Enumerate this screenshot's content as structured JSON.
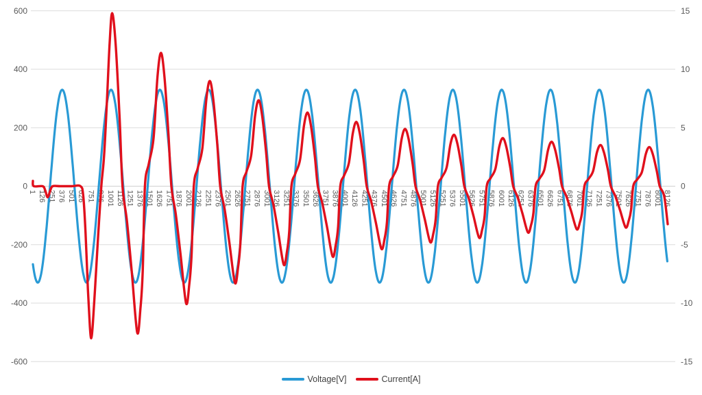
{
  "window": {
    "background": "#ffffff"
  },
  "colors": {
    "gridline": "#dbdbdb",
    "zero_line": "#cfcfcf",
    "axis_text": "#595959",
    "legend_text": "#3f3f3f",
    "voltage": "#299ad5",
    "current": "#e0101c"
  },
  "legend": {
    "items": [
      {
        "label": "Voltage[V]",
        "series": "voltage"
      },
      {
        "label": "Current[A]",
        "series": "current"
      }
    ]
  },
  "chart_data": {
    "type": "line",
    "title": "",
    "grid": "horizontal-only",
    "legend_position": "bottom-center",
    "x_axis": {
      "min": 1,
      "max": 8126,
      "tick_step": 125,
      "labels_rotation_deg": 90,
      "ticks": [
        1,
        126,
        251,
        376,
        501,
        626,
        751,
        876,
        1001,
        1126,
        1251,
        1376,
        1501,
        1626,
        1751,
        1876,
        2001,
        2126,
        2251,
        2376,
        2501,
        2626,
        2751,
        2876,
        3001,
        3126,
        3251,
        3376,
        3501,
        3626,
        3751,
        3876,
        4001,
        4126,
        4251,
        4376,
        4501,
        4626,
        4751,
        4876,
        5001,
        5126,
        5251,
        5376,
        5501,
        5626,
        5751,
        5876,
        6001,
        6126,
        6251,
        6376,
        6501,
        6626,
        6751,
        6876,
        7001,
        7126,
        7251,
        7376,
        7501,
        7626,
        7751,
        7876,
        8001,
        8126
      ]
    },
    "y_axis_left": {
      "min": -600,
      "max": 600,
      "tick_step": 200,
      "ticks": [
        600,
        400,
        200,
        0,
        -200,
        -400,
        -600
      ]
    },
    "y_axis_right": {
      "min": -15,
      "max": 15,
      "tick_step": 5,
      "ticks": [
        15,
        10,
        5,
        0,
        -5,
        -10,
        -15
      ]
    },
    "series": [
      {
        "name": "Voltage[V]",
        "axis": "left",
        "color_key": "voltage",
        "waveform": {
          "kind": "cosine",
          "amplitude": 330,
          "period_samples": 625,
          "peak_at_x": 376,
          "x_start": 1,
          "x_end": 8126,
          "peak_xs": [
            376,
            1001,
            1626,
            2251,
            2876,
            3501,
            4126,
            4751,
            5376,
            6001,
            6626,
            7251,
            7876
          ]
        }
      },
      {
        "name": "Current[A]",
        "axis": "right",
        "color_key": "current",
        "waveform": {
          "kind": "decaying-distorted-sine-keypoints",
          "initial_points": [
            [
              1,
              0.45
            ],
            [
              12,
              0
            ],
            [
              126,
              0
            ],
            [
              158,
              -0.35
            ],
            [
              190,
              -0.95
            ],
            [
              224,
              -0.35
            ],
            [
              255,
              0
            ],
            [
              350,
              0
            ],
            [
              500,
              0
            ],
            [
              610,
              0
            ],
            [
              645,
              -0.8
            ],
            [
              675,
              -4.0
            ],
            [
              705,
              -8.8
            ],
            [
              730,
              -12.0
            ],
            [
              748,
              -13.0
            ],
            [
              768,
              -11.8
            ],
            [
              800,
              -8.3
            ],
            [
              838,
              -4.0
            ],
            [
              877,
              0
            ],
            [
              912,
              2.6
            ],
            [
              948,
              7.2
            ],
            [
              983,
              12.2
            ]
          ],
          "peak_x": [
            1015,
            1640,
            2265,
            2890,
            3515,
            4140,
            4765,
            5390,
            6015,
            6640,
            7265,
            7890
          ],
          "peak_A": [
            14.8,
            11.4,
            9.0,
            7.35,
            6.3,
            5.5,
            4.9,
            4.4,
            4.12,
            3.8,
            3.52,
            3.35
          ],
          "trough_A": [
            -12.5,
            -10.0,
            -8.25,
            -6.7,
            -6.0,
            -5.35,
            -4.78,
            -4.4,
            -3.95,
            -3.68,
            -3.52,
            -3.5
          ],
          "trough_offset": 321,
          "cycle_shape": {
            "rise": [
              [
                -205,
                0
              ],
              [
                -155,
                0.17
              ],
              [
                -95,
                0.36
              ],
              [
                -45,
                0.82
              ]
            ],
            "fall": [
              [
                45,
                0.82
              ],
              [
                95,
                0.4
              ],
              [
                133,
                0
              ]
            ],
            "neg": [
              [
                190,
                0.24
              ],
              [
                250,
                0.58
              ],
              [
                321,
                1.0
              ],
              [
                362,
                0.84
              ],
              [
                392,
                0.58
              ]
            ]
          },
          "end_point": [
            8126,
            -3.25
          ]
        }
      }
    ]
  },
  "geometry_note": "dual y-axis: left volts (200 V/div), right amps (5 A/div), 40 V per A equivalence"
}
